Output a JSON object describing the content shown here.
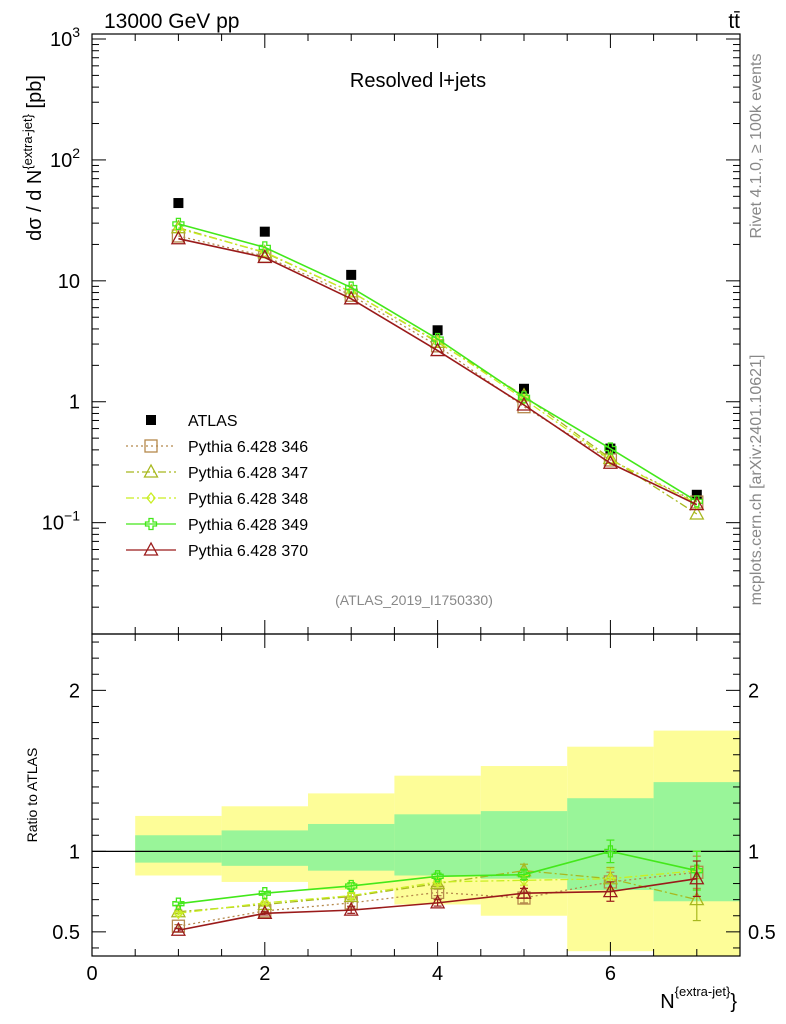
{
  "header": {
    "energy": "13000 GeV pp",
    "process": "tt̄"
  },
  "side_labels": {
    "rivet": "Rivet 4.1.0, ≥ 100k events",
    "mcplots": "mcplots.cern.ch [arXiv:2401.10621]"
  },
  "chart_data": [
    {
      "type": "line",
      "panel": "main",
      "title": "Resolved l+jets",
      "analysis_id": "(ATLAS_2019_I1750330)",
      "ylabel": "dσ / d N^{extra-jet} [pb]",
      "yscale": "log",
      "ylim": [
        0.012,
        1100
      ],
      "xlim": [
        0,
        7.5
      ],
      "y_tick_labels": [
        {
          "value": 1000,
          "base": "10",
          "exp": "3"
        },
        {
          "value": 100,
          "base": "10",
          "exp": "2"
        },
        {
          "value": 10,
          "base": "10",
          "exp": ""
        },
        {
          "value": 1,
          "base": "1",
          "exp": ""
        },
        {
          "value": 0.1,
          "base": "10",
          "exp": "−1"
        }
      ],
      "x": [
        1,
        2,
        3,
        4,
        5,
        6,
        7
      ],
      "legend_position": "bottom-left",
      "series": [
        {
          "name": "ATLAS",
          "color": "#000000",
          "marker": "filled-square",
          "line": "none",
          "values": [
            44,
            25.5,
            11.2,
            3.9,
            1.28,
            0.41,
            0.17
          ]
        },
        {
          "name": "Pythia 6.428 346",
          "color": "#b5894c",
          "marker": "open-square",
          "line": "dotted",
          "values": [
            23.5,
            16.0,
            7.6,
            2.9,
            0.91,
            0.33,
            0.148
          ]
        },
        {
          "name": "Pythia 6.428 347",
          "color": "#a8b81f",
          "marker": "open-triangle",
          "line": "dashdot",
          "values": [
            27.5,
            17.1,
            8.1,
            3.1,
            1.12,
            0.34,
            0.118
          ]
        },
        {
          "name": "Pythia 6.428 348",
          "color": "#c9ee22",
          "marker": "open-diamond",
          "line": "dashdot",
          "values": [
            27.0,
            17.3,
            8.1,
            3.15,
            1.05,
            0.33,
            0.145
          ]
        },
        {
          "name": "Pythia 6.428 349",
          "color": "#43e81a",
          "marker": "open-cross",
          "line": "solid",
          "values": [
            29.6,
            18.9,
            8.8,
            3.3,
            1.09,
            0.41,
            0.15
          ]
        },
        {
          "name": "Pythia 6.428 370",
          "color": "#9a1a1a",
          "marker": "open-triangle",
          "line": "solid",
          "values": [
            22.3,
            15.6,
            7.1,
            2.65,
            0.94,
            0.31,
            0.141
          ]
        }
      ]
    },
    {
      "type": "line",
      "panel": "ratio",
      "ylabel": "Ratio to ATLAS",
      "xlabel": "N^{extra-jet}",
      "ylim": [
        0.35,
        2.35
      ],
      "xlim": [
        0,
        7.5
      ],
      "y_tick_labels": [
        "0.5",
        "1",
        "2"
      ],
      "x_tick_labels": [
        "0",
        "2",
        "4",
        "6"
      ],
      "x": [
        1,
        2,
        3,
        4,
        5,
        6,
        7
      ],
      "bands": {
        "bin_edges": [
          0.5,
          1.5,
          2.5,
          3.5,
          4.5,
          5.5,
          6.5,
          7.5
        ],
        "stat_low": [
          0.93,
          0.91,
          0.88,
          0.85,
          0.83,
          0.76,
          0.69
        ],
        "stat_high": [
          1.1,
          1.13,
          1.17,
          1.23,
          1.25,
          1.33,
          1.43
        ],
        "total_low": [
          0.85,
          0.81,
          0.76,
          0.67,
          0.6,
          0.38,
          0.35
        ],
        "total_high": [
          1.22,
          1.28,
          1.36,
          1.47,
          1.53,
          1.65,
          1.75
        ],
        "stat_color": "#99f599",
        "total_color": "#fdfd98"
      },
      "reference_line": 1,
      "series": [
        {
          "name": "Pythia 6.428 346",
          "color": "#b5894c",
          "marker": "open-square",
          "line": "dotted",
          "values": [
            0.535,
            0.63,
            0.68,
            0.745,
            0.71,
            0.81,
            0.87
          ],
          "err": [
            0.01,
            0.01,
            0.02,
            0.02,
            0.03,
            0.06,
            0.1
          ]
        },
        {
          "name": "Pythia 6.428 347",
          "color": "#a8b81f",
          "marker": "open-triangle",
          "line": "dashdot",
          "values": [
            0.625,
            0.67,
            0.72,
            0.8,
            0.88,
            0.83,
            0.7
          ],
          "err": [
            0.01,
            0.01,
            0.02,
            0.02,
            0.04,
            0.07,
            0.13
          ]
        },
        {
          "name": "Pythia 6.428 348",
          "color": "#c9ee22",
          "marker": "open-diamond",
          "line": "dashdot",
          "values": [
            0.615,
            0.68,
            0.725,
            0.81,
            0.82,
            0.83,
            0.88
          ],
          "err": [
            0.01,
            0.01,
            0.02,
            0.02,
            0.03,
            0.06,
            0.12
          ]
        },
        {
          "name": "Pythia 6.428 349",
          "color": "#43e81a",
          "marker": "open-cross",
          "line": "solid",
          "values": [
            0.675,
            0.74,
            0.785,
            0.845,
            0.855,
            1.0,
            0.88
          ],
          "err": [
            0.01,
            0.01,
            0.02,
            0.02,
            0.03,
            0.07,
            0.12
          ]
        },
        {
          "name": "Pythia 6.428 370",
          "color": "#9a1a1a",
          "marker": "open-triangle",
          "line": "solid",
          "values": [
            0.51,
            0.615,
            0.635,
            0.68,
            0.74,
            0.75,
            0.83
          ],
          "err": [
            0.01,
            0.01,
            0.02,
            0.02,
            0.03,
            0.06,
            0.11
          ]
        }
      ]
    }
  ]
}
